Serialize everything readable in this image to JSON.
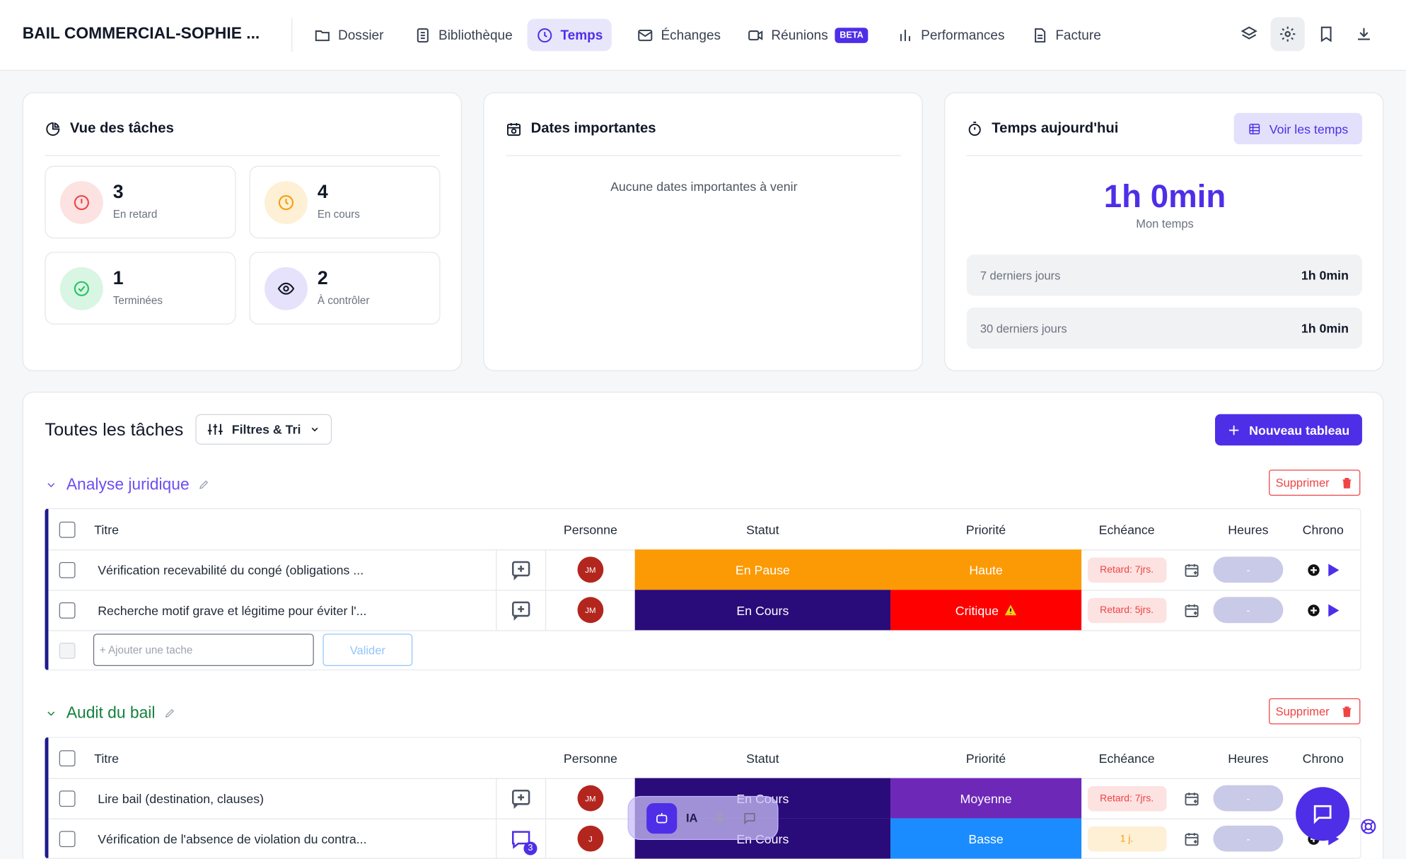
{
  "header": {
    "title": "BAIL COMMERCIAL-SOPHIE ...",
    "nav": [
      "Dossier",
      "Bibliothèque",
      "Temps",
      "Échanges",
      "Réunions",
      "Performances",
      "Facture"
    ],
    "beta": "BETA"
  },
  "task_view": {
    "title": "Vue des tâches",
    "stats": [
      {
        "value": 3,
        "label": "En retard"
      },
      {
        "value": 4,
        "label": "En cours"
      },
      {
        "value": 1,
        "label": "Terminées"
      },
      {
        "value": 2,
        "label": "À contrôler"
      }
    ]
  },
  "dates": {
    "title": "Dates importantes",
    "empty": "Aucune dates importantes à venir"
  },
  "time_today": {
    "title": "Temps aujourd'hui",
    "button": "Voir les temps",
    "total": "1h 0min",
    "total_label": "Mon temps",
    "periods": [
      {
        "label": "7 derniers jours",
        "value": "1h 0min"
      },
      {
        "label": "30 derniers jours",
        "value": "1h 0min"
      }
    ]
  },
  "tasks": {
    "title": "Toutes les tâches",
    "filter": "Filtres & Tri",
    "new_board": "Nouveau tableau",
    "columns": [
      "Titre",
      "Personne",
      "Statut",
      "Priorité",
      "Echéance",
      "Heures",
      "Chrono"
    ],
    "groups": [
      {
        "name": "Analyse juridique",
        "color": "#6d4ef0",
        "delete": "Supprimer",
        "rows": [
          {
            "title": "Vérification recevabilité du congé (obligations ...",
            "person": "JM",
            "status": "En Pause",
            "status_color": "#fb9a04",
            "priority": "Haute",
            "priority_color": "#fb9a04",
            "due": "Retard: 7jrs.",
            "hours": "-"
          },
          {
            "title": "Recherche motif grave et légitime pour éviter l'...",
            "person": "JM",
            "status": "En Cours",
            "status_color": "#2a0b7a",
            "priority": "Critique",
            "priority_color": "#ff0000",
            "due": "Retard: 5jrs.",
            "hours": "-"
          }
        ],
        "add_placeholder": "+ Ajouter une tache",
        "validate": "Valider"
      },
      {
        "name": "Audit du bail",
        "color": "#15803d",
        "delete": "Supprimer",
        "rows": [
          {
            "title": "Lire bail (destination, clauses)",
            "person": "JM",
            "status": "En Cours",
            "status_color": "#2a0b7a",
            "priority": "Moyenne",
            "priority_color": "#6d28b8",
            "due": "Retard: 7jrs.",
            "hours": "-"
          },
          {
            "title": "Vérification de l'absence de violation du contra...",
            "person": "J",
            "comment_count": 3,
            "status": "En Cours",
            "status_color": "#2a0b7a",
            "priority": "Basse",
            "priority_color": "#1a8cff",
            "due": "1 j.",
            "hours": "-"
          }
        ]
      }
    ]
  },
  "assistant": {
    "label": "IA"
  }
}
